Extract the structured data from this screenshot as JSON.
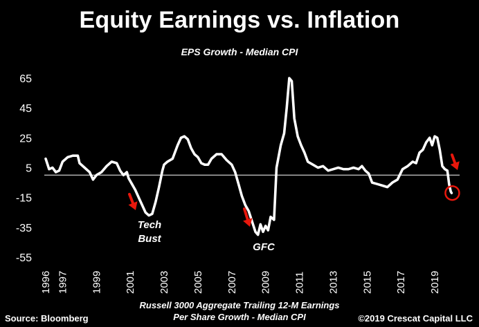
{
  "chart_data": {
    "type": "line",
    "title": "Equity Earnings vs. Inflation",
    "subtitle": "EPS Growth - Median CPI",
    "xlabel": "",
    "ylabel": "",
    "ylim": [
      -55,
      70
    ],
    "xlim": [
      1995.8,
      2020.6
    ],
    "yticks": [
      "65",
      "45",
      "25",
      "5",
      "-15",
      "-35",
      "-55"
    ],
    "xticks": [
      "1996",
      "1997",
      "1999",
      "2001",
      "2003",
      "2005",
      "2007",
      "2009",
      "2011",
      "2013",
      "2015",
      "2017",
      "2019"
    ],
    "grid": false,
    "zero_line": true,
    "series": [
      {
        "color": "#ffffff",
        "points": [
          [
            1996.0,
            11
          ],
          [
            1996.2,
            4
          ],
          [
            1996.4,
            5
          ],
          [
            1996.6,
            2
          ],
          [
            1996.8,
            3
          ],
          [
            1997.0,
            9
          ],
          [
            1997.3,
            12
          ],
          [
            1997.6,
            13
          ],
          [
            1997.9,
            13
          ],
          [
            1998.0,
            8
          ],
          [
            1998.3,
            5
          ],
          [
            1998.6,
            2
          ],
          [
            1998.8,
            -3
          ],
          [
            1999.0,
            0
          ],
          [
            1999.3,
            2
          ],
          [
            1999.6,
            6
          ],
          [
            1999.9,
            9
          ],
          [
            2000.2,
            8
          ],
          [
            2000.4,
            3
          ],
          [
            2000.6,
            0
          ],
          [
            2000.8,
            2
          ],
          [
            2000.9,
            -2
          ],
          [
            2001.1,
            -6
          ],
          [
            2001.3,
            -10
          ],
          [
            2001.5,
            -15
          ],
          [
            2001.7,
            -20
          ],
          [
            2001.9,
            -25
          ],
          [
            2002.1,
            -27
          ],
          [
            2002.3,
            -26
          ],
          [
            2002.5,
            -18
          ],
          [
            2002.7,
            -8
          ],
          [
            2002.9,
            3
          ],
          [
            2003.0,
            7
          ],
          [
            2003.2,
            9
          ],
          [
            2003.5,
            11
          ],
          [
            2003.8,
            20
          ],
          [
            2004.0,
            25
          ],
          [
            2004.2,
            26
          ],
          [
            2004.4,
            24
          ],
          [
            2004.6,
            18
          ],
          [
            2004.8,
            14
          ],
          [
            2005.0,
            12
          ],
          [
            2005.2,
            8
          ],
          [
            2005.4,
            7
          ],
          [
            2005.6,
            7
          ],
          [
            2005.8,
            11
          ],
          [
            2006.1,
            14
          ],
          [
            2006.4,
            14
          ],
          [
            2006.7,
            10
          ],
          [
            2007.0,
            7
          ],
          [
            2007.2,
            2
          ],
          [
            2007.4,
            -6
          ],
          [
            2007.6,
            -14
          ],
          [
            2007.8,
            -20
          ],
          [
            2008.0,
            -24
          ],
          [
            2008.2,
            -31
          ],
          [
            2008.4,
            -38
          ],
          [
            2008.55,
            -40
          ],
          [
            2008.7,
            -33
          ],
          [
            2008.85,
            -38
          ],
          [
            2009.0,
            -34
          ],
          [
            2009.15,
            -37
          ],
          [
            2009.3,
            -28
          ],
          [
            2009.5,
            -30
          ],
          [
            2009.65,
            5
          ],
          [
            2009.9,
            20
          ],
          [
            2010.1,
            28
          ],
          [
            2010.25,
            45
          ],
          [
            2010.4,
            65
          ],
          [
            2010.55,
            63
          ],
          [
            2010.7,
            38
          ],
          [
            2010.9,
            26
          ],
          [
            2011.1,
            20
          ],
          [
            2011.3,
            15
          ],
          [
            2011.5,
            9
          ],
          [
            2011.8,
            7
          ],
          [
            2012.1,
            5
          ],
          [
            2012.4,
            6
          ],
          [
            2012.7,
            3
          ],
          [
            2013.0,
            4
          ],
          [
            2013.3,
            5
          ],
          [
            2013.6,
            4
          ],
          [
            2013.9,
            4
          ],
          [
            2014.2,
            5
          ],
          [
            2014.5,
            4
          ],
          [
            2014.7,
            6
          ],
          [
            2014.9,
            3
          ],
          [
            2015.1,
            1
          ],
          [
            2015.3,
            -5
          ],
          [
            2015.6,
            -6
          ],
          [
            2015.9,
            -7
          ],
          [
            2016.2,
            -8
          ],
          [
            2016.5,
            -5
          ],
          [
            2016.8,
            -3
          ],
          [
            2017.1,
            4
          ],
          [
            2017.4,
            6
          ],
          [
            2017.7,
            9
          ],
          [
            2017.9,
            8
          ],
          [
            2018.1,
            15
          ],
          [
            2018.3,
            17
          ],
          [
            2018.5,
            22
          ],
          [
            2018.7,
            25
          ],
          [
            2018.85,
            20
          ],
          [
            2019.0,
            26
          ],
          [
            2019.15,
            25
          ],
          [
            2019.3,
            17
          ],
          [
            2019.45,
            6
          ],
          [
            2019.6,
            4
          ],
          [
            2019.75,
            3
          ],
          [
            2019.85,
            -6
          ],
          [
            2019.95,
            -11
          ],
          [
            2020.0,
            -12
          ]
        ]
      }
    ],
    "annotations": {
      "tech_bust": [
        "Tech",
        "Bust"
      ],
      "gfc": "GFC",
      "arrow_color": "#e8170c",
      "circle_color": "#e8170c"
    },
    "caption": [
      "Russell 3000 Aggregate Trailing 12-M Earnings",
      "Per Share Growth - Median CPI"
    ],
    "source": "Source: Bloomberg",
    "copyright": "©2019 Crescat Capital LLC"
  }
}
